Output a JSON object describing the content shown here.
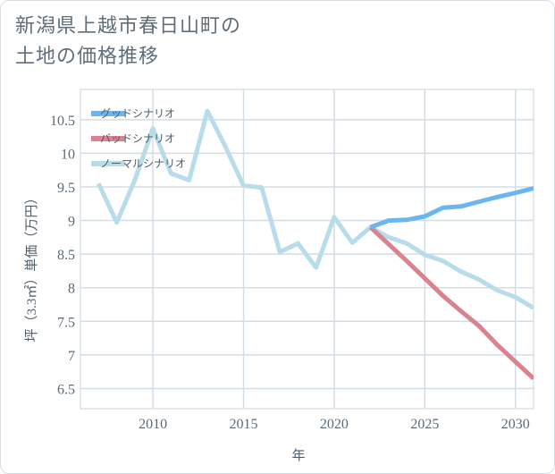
{
  "title_lines": [
    "新潟県上越市春日山町の",
    "土地の価格推移"
  ],
  "chart_data": {
    "type": "line",
    "title": "新潟県上越市春日山町の土地の価格推移",
    "xlabel": "年",
    "ylabel": "坪（3.3㎡）単価（万円）",
    "xlim": [
      2006,
      2031
    ],
    "ylim": [
      6.2,
      10.95
    ],
    "xticks": [
      2010,
      2015,
      2020,
      2025,
      2030
    ],
    "yticks": [
      6.5,
      7,
      7.5,
      8,
      8.5,
      9,
      9.5,
      10,
      10.5
    ],
    "legend_position": "top-left",
    "series": [
      {
        "name": "グッドシナリオ",
        "color": "#6cb6f0",
        "x": [
          2022,
          2023,
          2024,
          2025,
          2026,
          2027,
          2028,
          2029,
          2030,
          2031
        ],
        "values": [
          8.9,
          9.0,
          9.01,
          9.06,
          9.19,
          9.21,
          9.28,
          9.35,
          9.41,
          9.48
        ]
      },
      {
        "name": "バッドシナリオ",
        "color": "#d8838f",
        "x": [
          2022,
          2023,
          2024,
          2025,
          2026,
          2027,
          2028,
          2029,
          2030,
          2031
        ],
        "values": [
          8.9,
          8.65,
          8.4,
          8.14,
          7.88,
          7.65,
          7.43,
          7.15,
          6.9,
          6.65
        ]
      },
      {
        "name": "ノーマルシナリオ",
        "color": "#b8dcea",
        "x": [
          2007,
          2008,
          2009,
          2010,
          2011,
          2012,
          2013,
          2014,
          2015,
          2016,
          2017,
          2018,
          2019,
          2020,
          2021,
          2022,
          2023,
          2024,
          2025,
          2026,
          2027,
          2028,
          2029,
          2030,
          2031
        ],
        "values": [
          9.55,
          8.97,
          9.6,
          10.37,
          9.7,
          9.6,
          10.63,
          10.1,
          9.52,
          9.49,
          8.53,
          8.66,
          8.3,
          9.05,
          8.67,
          8.9,
          8.75,
          8.66,
          8.49,
          8.4,
          8.24,
          8.12,
          7.96,
          7.86,
          7.7
        ]
      }
    ]
  }
}
